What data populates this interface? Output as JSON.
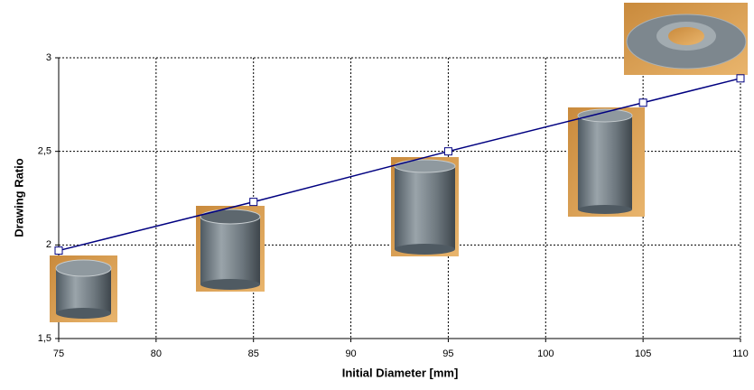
{
  "chart_data": {
    "type": "line",
    "x_label": "Initial Diameter [mm]",
    "y_label": "Drawing Ratio",
    "x": [
      75,
      85,
      95,
      105,
      110
    ],
    "values": [
      1.97,
      2.23,
      2.5,
      2.76,
      2.89
    ],
    "color": "#000080",
    "xlim": [
      75,
      110
    ],
    "xticks": [
      75,
      80,
      85,
      90,
      95,
      100,
      105,
      110
    ],
    "ylim": [
      1.5,
      3
    ],
    "yticks": [
      {
        "value": 1.5,
        "label": "1,5"
      },
      2,
      {
        "value": 2.5,
        "label": "2,5"
      },
      3
    ],
    "grid": true
  }
}
